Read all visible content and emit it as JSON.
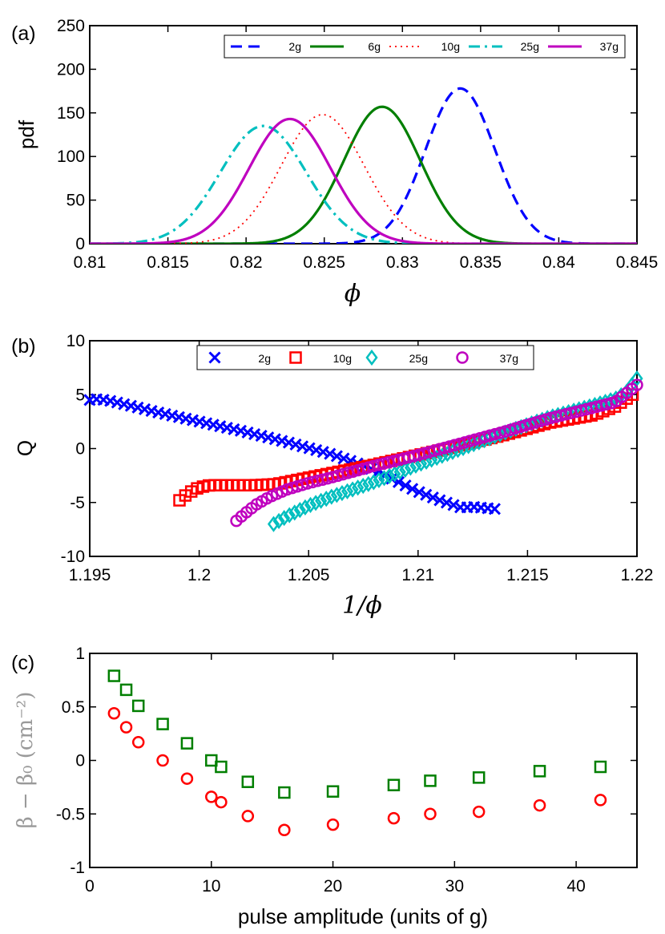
{
  "chart_data": [
    {
      "panel": "(a)",
      "type": "line",
      "title": "",
      "xlabel": "ϕ",
      "ylabel": "pdf",
      "xlim": [
        0.81,
        0.845
      ],
      "ylim": [
        0,
        250
      ],
      "xticks": [
        "0.81",
        "0.815",
        "0.82",
        "0.825",
        "0.83",
        "0.835",
        "0.84",
        "0.845"
      ],
      "yticks": [
        "0",
        "50",
        "100",
        "150",
        "200",
        "250"
      ],
      "legend_position": "top",
      "series": [
        {
          "name": "2g",
          "color": "#0000ff",
          "style": "dashed",
          "mu": 0.8337,
          "sigma": 0.00222,
          "peak": 178
        },
        {
          "name": "6g",
          "color": "#007f00",
          "style": "solid",
          "mu": 0.8287,
          "sigma": 0.00245,
          "peak": 157
        },
        {
          "name": "10g",
          "color": "#ff0000",
          "style": "dotted",
          "mu": 0.8249,
          "sigma": 0.00265,
          "peak": 148
        },
        {
          "name": "25g",
          "color": "#00bfbf",
          "style": "dashdot",
          "mu": 0.8211,
          "sigma": 0.00275,
          "peak": 135
        },
        {
          "name": "37g",
          "color": "#bf00bf",
          "style": "solid",
          "mu": 0.8228,
          "sigma": 0.0026,
          "peak": 143
        }
      ]
    },
    {
      "panel": "(b)",
      "type": "scatter",
      "title": "",
      "xlabel": "1/ϕ",
      "ylabel": "Q",
      "xlim": [
        1.195,
        1.22
      ],
      "ylim": [
        -10,
        10
      ],
      "xticks": [
        "1.195",
        "1.2",
        "1.205",
        "1.21",
        "1.215",
        "1.22"
      ],
      "yticks": [
        "-10",
        "-5",
        "0",
        "5",
        "10"
      ],
      "legend_position": "top",
      "series": [
        {
          "name": "2g",
          "color": "#0000ff",
          "marker": "x",
          "x": [
            1.195,
            1.1954,
            1.196,
            1.198,
            1.2,
            1.202,
            1.204,
            1.206,
            1.207,
            1.208,
            1.209,
            1.21,
            1.211,
            1.212,
            1.2125,
            1.2135
          ],
          "y": [
            4.5,
            4.6,
            4.4,
            3.4,
            2.5,
            1.6,
            0.6,
            -0.5,
            -1.2,
            -2.0,
            -3.0,
            -4.0,
            -4.8,
            -5.5,
            -5.4,
            -5.6
          ]
        },
        {
          "name": "10g",
          "color": "#ff0000",
          "marker": "square",
          "x": [
            1.1991,
            1.1994,
            1.1997,
            1.2,
            1.2005,
            1.2015,
            1.2025,
            1.2035,
            1.205,
            1.208,
            1.21,
            1.212,
            1.214,
            1.216,
            1.218,
            1.219,
            1.2198
          ],
          "y": [
            -4.8,
            -4.3,
            -3.9,
            -3.6,
            -3.4,
            -3.4,
            -3.4,
            -3.3,
            -2.7,
            -1.5,
            -0.6,
            0.3,
            1.3,
            2.4,
            3.1,
            3.9,
            5.0
          ]
        },
        {
          "name": "25g",
          "color": "#00bfbf",
          "marker": "diamond",
          "x": [
            1.2034,
            1.204,
            1.2045,
            1.205,
            1.206,
            1.207,
            1.208,
            1.209,
            1.21,
            1.212,
            1.214,
            1.216,
            1.218,
            1.219,
            1.2195,
            1.22
          ],
          "y": [
            -7.0,
            -6.3,
            -5.8,
            -5.3,
            -4.5,
            -3.8,
            -3.1,
            -2.3,
            -1.5,
            0.0,
            1.5,
            2.9,
            4.0,
            4.6,
            5.2,
            6.5
          ]
        },
        {
          "name": "37g",
          "color": "#bf00bf",
          "marker": "circle",
          "x": [
            1.2017,
            1.2021,
            1.2026,
            1.2032,
            1.204,
            1.205,
            1.206,
            1.208,
            1.21,
            1.212,
            1.214,
            1.216,
            1.218,
            1.219,
            1.22
          ],
          "y": [
            -6.7,
            -6.0,
            -5.2,
            -4.5,
            -3.8,
            -3.2,
            -2.7,
            -1.6,
            -0.6,
            0.5,
            1.6,
            2.8,
            3.8,
            4.3,
            5.9
          ]
        }
      ]
    },
    {
      "panel": "(c)",
      "type": "scatter",
      "title": "",
      "xlabel": "pulse amplitude (units of g)",
      "ylabel": "β − β₀ (cm⁻²)",
      "xlim": [
        0,
        45
      ],
      "ylim": [
        -1,
        1
      ],
      "xticks": [
        "0",
        "10",
        "20",
        "30",
        "40"
      ],
      "yticks": [
        "-1",
        "-0.5",
        "0",
        "0.5",
        "1"
      ],
      "series": [
        {
          "name": "green squares",
          "color": "#007f00",
          "marker": "square",
          "x": [
            2,
            3,
            4,
            6,
            8,
            10,
            10.8,
            13,
            16,
            20,
            25,
            28,
            32,
            37,
            42
          ],
          "y": [
            0.79,
            0.66,
            0.51,
            0.34,
            0.16,
            0.0,
            -0.06,
            -0.2,
            -0.3,
            -0.29,
            -0.23,
            -0.19,
            -0.16,
            -0.1,
            -0.06
          ]
        },
        {
          "name": "red circles",
          "color": "#ff0000",
          "marker": "circle",
          "x": [
            2,
            3,
            4,
            6,
            8,
            10,
            10.8,
            13,
            16,
            20,
            25,
            28,
            32,
            37,
            42
          ],
          "y": [
            0.44,
            0.31,
            0.17,
            0.0,
            -0.17,
            -0.34,
            -0.39,
            -0.52,
            -0.65,
            -0.6,
            -0.54,
            -0.5,
            -0.48,
            -0.42,
            -0.37
          ]
        }
      ]
    }
  ]
}
